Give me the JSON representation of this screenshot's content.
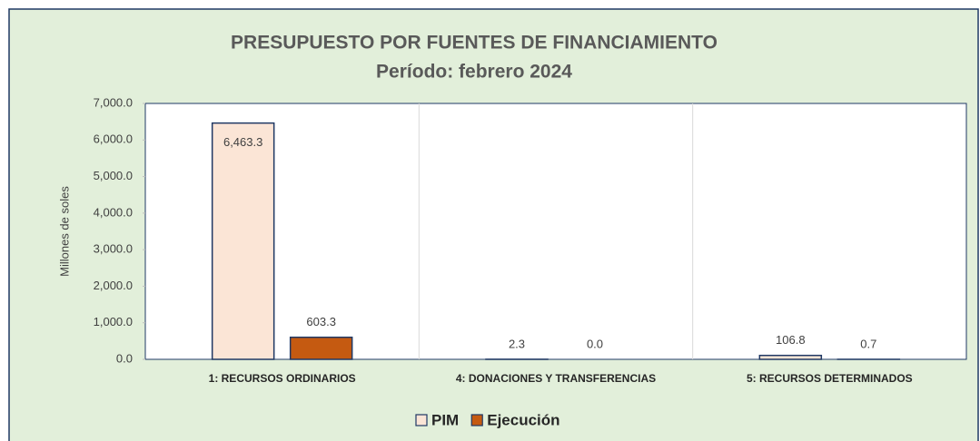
{
  "chart_data": {
    "type": "bar",
    "title": "PRESUPUESTO POR FUENTES DE FINANCIAMIENTO",
    "subtitle": "Período:  febrero 2024",
    "y_axis_label": "Millones de soles",
    "categories": [
      "1: RECURSOS ORDINARIOS",
      "4: DONACIONES Y TRANSFERENCIAS",
      "5: RECURSOS DETERMINADOS"
    ],
    "series": [
      {
        "name": "PIM",
        "color": "#fbe5d6",
        "values": [
          6463.3,
          2.3,
          106.8
        ],
        "value_labels": [
          "6,463.3",
          "2.3",
          "106.8"
        ]
      },
      {
        "name": "Ejecución",
        "color": "#c55a11",
        "values": [
          603.3,
          0.0,
          0.7
        ],
        "value_labels": [
          "603.3",
          "0.0",
          "0.7"
        ]
      }
    ],
    "ylim": [
      0,
      7000
    ],
    "yticks": [
      {
        "value": 0,
        "label": "0.0"
      },
      {
        "value": 1000,
        "label": "1,000.0"
      },
      {
        "value": 2000,
        "label": "2,000.0"
      },
      {
        "value": 3000,
        "label": "3,000.0"
      },
      {
        "value": 4000,
        "label": "4,000.0"
      },
      {
        "value": 5000,
        "label": "5,000.0"
      },
      {
        "value": 6000,
        "label": "6,000.0"
      },
      {
        "value": 7000,
        "label": "7,000.0"
      }
    ],
    "grid": false,
    "legend": "bottom"
  }
}
